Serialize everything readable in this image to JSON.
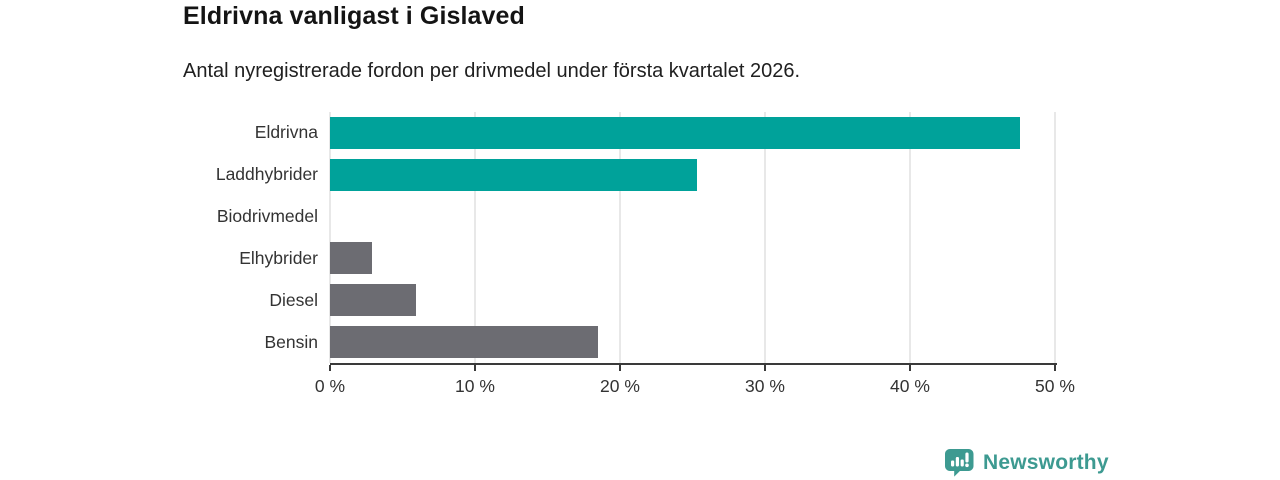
{
  "header": {
    "title": "Eldrivna vanligast i Gislaved",
    "subtitle": "Antal nyregistrerade fordon per drivmedel under första kvartalet 2026."
  },
  "chart_data": {
    "type": "bar",
    "orientation": "horizontal",
    "title": "Eldrivna vanligast i Gislaved",
    "subtitle": "Antal nyregistrerade fordon per drivmedel under första kvartalet 2026.",
    "categories": [
      "Eldrivna",
      "Laddhybrider",
      "Biodrivmedel",
      "Elhybrider",
      "Diesel",
      "Bensin"
    ],
    "values": [
      47.6,
      25.3,
      0,
      2.9,
      5.9,
      18.5
    ],
    "unit": "%",
    "xlim": [
      0,
      50
    ],
    "x_ticks": [
      0,
      10,
      20,
      30,
      40,
      50
    ],
    "x_tick_labels": [
      "0 %",
      "10 %",
      "20 %",
      "30 %",
      "40 %",
      "50 %"
    ],
    "grid": true,
    "legend": false,
    "bar_colors": [
      "#00a29a",
      "#00a29a",
      "#6c6c72",
      "#6c6c72",
      "#6c6c72",
      "#6c6c72"
    ]
  },
  "colors": {
    "teal_bar": "#00a29a",
    "gray_bar": "#6c6c72",
    "gridline": "#e8e8e8",
    "axis": "#3a3a3a",
    "logo_teal": "#3d9a91"
  },
  "footer": {
    "brand": "Newsworthy",
    "logo_icon": "speech-bubble-bar-chart-exclamation-icon"
  }
}
